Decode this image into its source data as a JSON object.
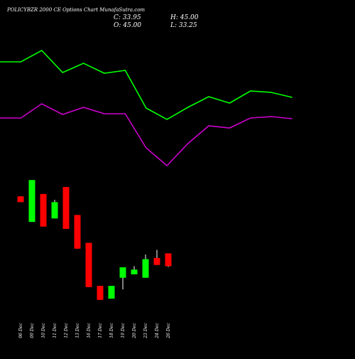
{
  "header": {
    "title": "POLICYBZR 2000  CE Options  Chart MunafaSutra.com",
    "close_label": "C: 33.95",
    "high_label": "H: 45.00",
    "open_label": "O: 45.00",
    "low_label": "L: 33.25"
  },
  "colors": {
    "background": "#000000",
    "bullish": "#00ff00",
    "bearish": "#ff0000",
    "upper_line": "#00ff00",
    "lower_line": "#cc00cc",
    "text": "#ffffff"
  },
  "chart_data": {
    "type": "candlestick",
    "title": "POLICYBZR 2000  CE Options  Chart MunafaSutra.com",
    "x_tick_labels": [
      "06 Dec",
      "09 Dec",
      "10 Dec",
      "11 Dec",
      "12 Dec",
      "13 Dec",
      "16 Dec",
      "17 Dec",
      "18 Dec",
      "19 Dec",
      "20 Dec",
      "23 Dec",
      "24 Dec",
      "26 Dec"
    ],
    "candles": [
      {
        "date": "06 Dec",
        "open": 94.0,
        "high": 94.0,
        "low": 89.0,
        "close": 89.0
      },
      {
        "date": "09 Dec",
        "open": 72.0,
        "high": 108.0,
        "low": 72.0,
        "close": 108.0
      },
      {
        "date": "10 Dec",
        "open": 96.0,
        "high": 96.0,
        "low": 68.0,
        "close": 68.0
      },
      {
        "date": "11 Dec",
        "open": 75.0,
        "high": 91.0,
        "low": 75.0,
        "close": 89.0
      },
      {
        "date": "12 Dec",
        "open": 102.0,
        "high": 102.0,
        "low": 66.0,
        "close": 66.0
      },
      {
        "date": "13 Dec",
        "open": 78.0,
        "high": 78.0,
        "low": 49.0,
        "close": 49.0
      },
      {
        "date": "16 Dec",
        "open": 54.0,
        "high": 54.0,
        "low": 16.0,
        "close": 16.0
      },
      {
        "date": "17 Dec",
        "open": 17.0,
        "high": 17.0,
        "low": 5.0,
        "close": 5.0
      },
      {
        "date": "18 Dec",
        "open": 6.0,
        "high": 17.0,
        "low": 6.0,
        "close": 17.0
      },
      {
        "date": "19 Dec",
        "open": 24.0,
        "high": 33.0,
        "low": 14.0,
        "close": 33.0
      },
      {
        "date": "20 Dec",
        "open": 27.0,
        "high": 34.0,
        "low": 27.0,
        "close": 31.0
      },
      {
        "date": "23 Dec",
        "open": 24.0,
        "high": 44.0,
        "low": 24.0,
        "close": 40.0
      },
      {
        "date": "24 Dec",
        "open": 41.0,
        "high": 48.0,
        "low": 35.0,
        "close": 35.0
      },
      {
        "date": "26 Dec",
        "open": 45.0,
        "high": 45.0,
        "low": 33.25,
        "close": 33.95
      }
    ],
    "series": [
      {
        "values": [
          87,
          87,
          71,
          102,
          89,
          103,
          99,
          152,
          168,
          151,
          136,
          145,
          128,
          130,
          137
        ]
      },
      {
        "values": [
          166,
          166,
          146,
          161,
          151,
          160,
          160,
          208,
          233,
          202,
          177,
          180,
          166,
          164,
          167
        ]
      }
    ],
    "grid": false
  }
}
